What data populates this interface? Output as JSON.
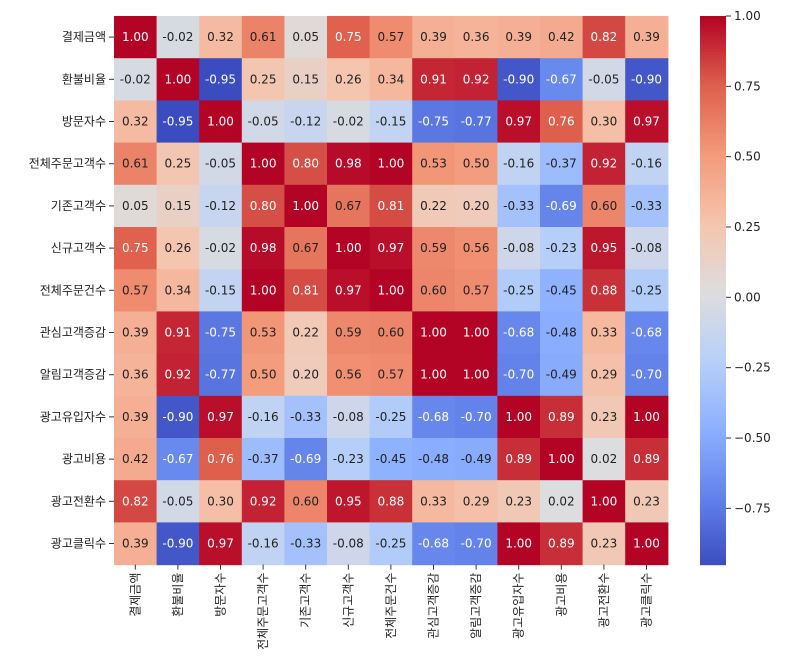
{
  "chart_data": {
    "type": "heatmap",
    "title": "",
    "xlabel": "",
    "ylabel": "",
    "labels": [
      "결제금액",
      "환불비율",
      "방문자수",
      "전체주문고객수",
      "기존고객수",
      "신규고객수",
      "전체주문건수",
      "관심고객증감",
      "알림고객증감",
      "광고유입자수",
      "광고비용",
      "광고전환수",
      "광고클릭수"
    ],
    "matrix": [
      [
        1.0,
        -0.02,
        0.32,
        0.61,
        0.05,
        0.75,
        0.57,
        0.39,
        0.36,
        0.39,
        0.42,
        0.82,
        0.39
      ],
      [
        -0.02,
        1.0,
        -0.95,
        0.25,
        0.15,
        0.26,
        0.34,
        0.91,
        0.92,
        -0.9,
        -0.67,
        -0.05,
        -0.9
      ],
      [
        0.32,
        -0.95,
        1.0,
        -0.05,
        -0.12,
        -0.02,
        -0.15,
        -0.75,
        -0.77,
        0.97,
        0.76,
        0.3,
        0.97
      ],
      [
        0.61,
        0.25,
        -0.05,
        1.0,
        0.8,
        0.98,
        1.0,
        0.53,
        0.5,
        -0.16,
        -0.37,
        0.92,
        -0.16
      ],
      [
        0.05,
        0.15,
        -0.12,
        0.8,
        1.0,
        0.67,
        0.81,
        0.22,
        0.2,
        -0.33,
        -0.69,
        0.6,
        -0.33
      ],
      [
        0.75,
        0.26,
        -0.02,
        0.98,
        0.67,
        1.0,
        0.97,
        0.59,
        0.56,
        -0.08,
        -0.23,
        0.95,
        -0.08
      ],
      [
        0.57,
        0.34,
        -0.15,
        1.0,
        0.81,
        0.97,
        1.0,
        0.6,
        0.57,
        -0.25,
        -0.45,
        0.88,
        -0.25
      ],
      [
        0.39,
        0.91,
        -0.75,
        0.53,
        0.22,
        0.59,
        0.6,
        1.0,
        1.0,
        -0.68,
        -0.48,
        0.33,
        -0.68
      ],
      [
        0.36,
        0.92,
        -0.77,
        0.5,
        0.2,
        0.56,
        0.57,
        1.0,
        1.0,
        -0.7,
        -0.49,
        0.29,
        -0.7
      ],
      [
        0.39,
        -0.9,
        0.97,
        -0.16,
        -0.33,
        -0.08,
        -0.25,
        -0.68,
        -0.7,
        1.0,
        0.89,
        0.23,
        1.0
      ],
      [
        0.42,
        -0.67,
        0.76,
        -0.37,
        -0.69,
        -0.23,
        -0.45,
        -0.48,
        -0.49,
        0.89,
        1.0,
        0.02,
        0.89
      ],
      [
        0.82,
        -0.05,
        0.3,
        0.92,
        0.6,
        0.95,
        0.88,
        0.33,
        0.29,
        0.23,
        0.02,
        1.0,
        0.23
      ],
      [
        0.39,
        -0.9,
        0.97,
        -0.16,
        -0.33,
        -0.08,
        -0.25,
        -0.68,
        -0.7,
        1.0,
        0.89,
        0.23,
        1.0
      ]
    ],
    "colormap": "coolwarm",
    "value_range": [
      -0.95,
      1.0
    ],
    "colorbar_ticks": [
      "1.00",
      "0.75",
      "0.50",
      "0.25",
      "0.00",
      "-0.25",
      "-0.50",
      "-0.75"
    ],
    "annotation_format": "0.00",
    "colors": {
      "low": "#3b4cc0",
      "mid": "#dddddd",
      "high": "#b40426"
    }
  }
}
